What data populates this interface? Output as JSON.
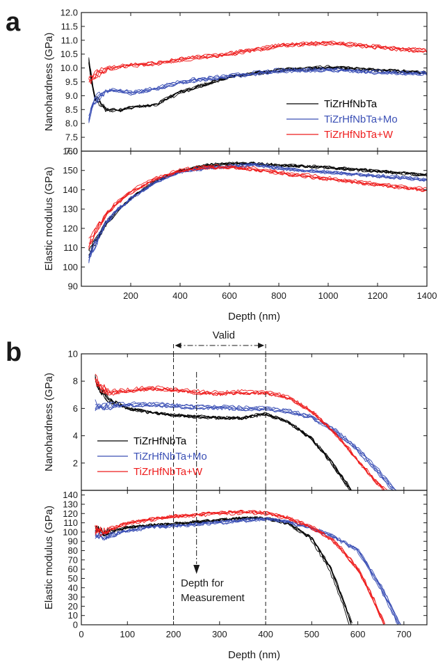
{
  "figure": {
    "panel_a_letter": "a",
    "panel_b_letter": "b"
  },
  "colors": {
    "TiZrHfNbTa": "#000000",
    "TiZrHfNbTa+Mo": "#3a4fb5",
    "TiZrHfNbTa+W": "#ee1c1c",
    "axis": "#1a1a1a"
  },
  "chart_data": [
    {
      "panel": "a",
      "type": "line",
      "xlabel": "Depth (nm)",
      "xlim": [
        0,
        1400
      ],
      "xticks": [
        "200",
        "400",
        "600",
        "800",
        "1000",
        "1200",
        "1400"
      ],
      "legend": [
        "TiZrHfNbTa",
        "TiZrHfNbTa+Mo",
        "TiZrHfNbTa+W"
      ],
      "legend_position": "right, inside top subplot",
      "subplots": [
        {
          "ylabel": "Nanohardness (GPa)",
          "ylim": [
            7.0,
            12.0
          ],
          "yticks": [
            "7.0",
            "7.5",
            "8.0",
            "8.5",
            "9.0",
            "9.5",
            "10.0",
            "10.5",
            "11.0",
            "11.5",
            "12.0"
          ],
          "series": [
            {
              "name": "TiZrHfNbTa",
              "x": [
                30,
                50,
                100,
                150,
                200,
                300,
                400,
                600,
                800,
                1000,
                1200,
                1400
              ],
              "y": [
                10.3,
                9.0,
                8.5,
                8.5,
                8.6,
                8.7,
                9.15,
                9.7,
                9.95,
                10.05,
                9.95,
                9.85
              ]
            },
            {
              "name": "TiZrHfNbTa+Mo",
              "x": [
                30,
                50,
                100,
                150,
                200,
                300,
                400,
                600,
                800,
                1000,
                1200,
                1400
              ],
              "y": [
                8.2,
                8.8,
                9.15,
                9.2,
                9.1,
                9.25,
                9.5,
                9.7,
                9.9,
                9.95,
                9.85,
                9.8
              ]
            },
            {
              "name": "TiZrHfNbTa+W",
              "x": [
                30,
                50,
                100,
                150,
                200,
                300,
                400,
                600,
                800,
                1000,
                1200,
                1400
              ],
              "y": [
                9.5,
                9.7,
                9.95,
                10.05,
                10.1,
                10.15,
                10.3,
                10.5,
                10.8,
                10.9,
                10.75,
                10.6
              ]
            }
          ]
        },
        {
          "ylabel": "Elastic modulus (GPa)",
          "ylim": [
            90,
            160
          ],
          "yticks": [
            "90",
            "100",
            "110",
            "120",
            "130",
            "140",
            "150",
            "160"
          ],
          "series": [
            {
              "name": "TiZrHfNbTa",
              "x": [
                30,
                50,
                100,
                150,
                200,
                300,
                400,
                500,
                600,
                700,
                800,
                1000,
                1200,
                1400
              ],
              "y": [
                107,
                112,
                123,
                130,
                136,
                145,
                150,
                153,
                154,
                154,
                153,
                152,
                150,
                148
              ]
            },
            {
              "name": "TiZrHfNbTa+Mo",
              "x": [
                30,
                50,
                100,
                150,
                200,
                300,
                400,
                500,
                600,
                700,
                800,
                1000,
                1200,
                1400
              ],
              "y": [
                103,
                110,
                123,
                130,
                135,
                144,
                149,
                151,
                152,
                153,
                151,
                149,
                147,
                145
              ]
            },
            {
              "name": "TiZrHfNbTa+W",
              "x": [
                30,
                50,
                100,
                150,
                200,
                300,
                400,
                500,
                600,
                700,
                800,
                1000,
                1200,
                1400
              ],
              "y": [
                112,
                117,
                128,
                134,
                139,
                146,
                150,
                152,
                152,
                151,
                149,
                146,
                143,
                140
              ]
            }
          ]
        }
      ]
    },
    {
      "panel": "b",
      "type": "line",
      "xlabel": "Depth (nm)",
      "xlim": [
        0,
        750
      ],
      "xticks": [
        "0",
        "100",
        "200",
        "300",
        "400",
        "500",
        "600",
        "700"
      ],
      "legend": [
        "TiZrHfNbTa",
        "TiZrHfNbTa+Mo",
        "TiZrHfNbTa+W"
      ],
      "legend_position": "lower-left, inside top subplot",
      "annotations": {
        "valid_label": "Valid",
        "valid_range": [
          200,
          400
        ],
        "measurement_line1": "Depth for",
        "measurement_line2": "Measurement",
        "measurement_depth": 250
      },
      "subplots": [
        {
          "ylabel": "Nanohardness (GPa)",
          "ylim": [
            0,
            10
          ],
          "yticks": [
            "2",
            "4",
            "6",
            "8",
            "10"
          ],
          "series": [
            {
              "name": "TiZrHfNbTa",
              "x": [
                30,
                40,
                60,
                100,
                150,
                200,
                250,
                300,
                350,
                400,
                450,
                500,
                540,
                570,
                585
              ],
              "y": [
                8.2,
                7.4,
                6.6,
                6.0,
                5.7,
                5.5,
                5.4,
                5.3,
                5.3,
                5.6,
                5.0,
                3.8,
                2.2,
                0.8,
                0.0
              ]
            },
            {
              "name": "TiZrHfNbTa+Mo",
              "x": [
                30,
                40,
                60,
                100,
                150,
                200,
                250,
                300,
                350,
                400,
                450,
                500,
                550,
                600,
                650,
                680
              ],
              "y": [
                6.2,
                6.1,
                6.2,
                6.3,
                6.3,
                6.2,
                6.1,
                6.1,
                6.0,
                6.0,
                5.8,
                5.4,
                4.4,
                3.0,
                1.2,
                0.0
              ]
            },
            {
              "name": "TiZrHfNbTa+W",
              "x": [
                30,
                40,
                60,
                100,
                150,
                200,
                250,
                300,
                350,
                400,
                450,
                500,
                550,
                600,
                640,
                660
              ],
              "y": [
                8.3,
                7.6,
                7.2,
                7.3,
                7.5,
                7.4,
                7.2,
                7.1,
                7.2,
                7.2,
                6.8,
                5.8,
                4.2,
                2.2,
                0.6,
                0.0
              ]
            }
          ]
        },
        {
          "ylabel": "Elastic modulus (GPa)",
          "ylim": [
            0,
            145
          ],
          "yticks": [
            "0",
            "10",
            "20",
            "30",
            "40",
            "50",
            "60",
            "70",
            "80",
            "90",
            "100",
            "110",
            "120",
            "130",
            "140"
          ],
          "series": [
            {
              "name": "TiZrHfNbTa",
              "x": [
                30,
                50,
                100,
                150,
                200,
                250,
                300,
                350,
                400,
                450,
                500,
                540,
                570,
                585
              ],
              "y": [
                103,
                98,
                104,
                106,
                108,
                110,
                112,
                114,
                114,
                108,
                92,
                60,
                22,
                0
              ]
            },
            {
              "name": "TiZrHfNbTa+Mo",
              "x": [
                30,
                50,
                100,
                150,
                200,
                250,
                300,
                350,
                400,
                450,
                500,
                550,
                600,
                650,
                690
              ],
              "y": [
                96,
                94,
                101,
                105,
                106,
                108,
                110,
                112,
                114,
                110,
                104,
                94,
                80,
                40,
                0
              ]
            },
            {
              "name": "TiZrHfNbTa+W",
              "x": [
                30,
                50,
                100,
                150,
                200,
                250,
                300,
                350,
                400,
                450,
                500,
                550,
                600,
                630,
                655
              ],
              "y": [
                102,
                100,
                109,
                113,
                116,
                118,
                120,
                121,
                120,
                114,
                104,
                88,
                58,
                28,
                0
              ]
            }
          ]
        }
      ]
    }
  ]
}
